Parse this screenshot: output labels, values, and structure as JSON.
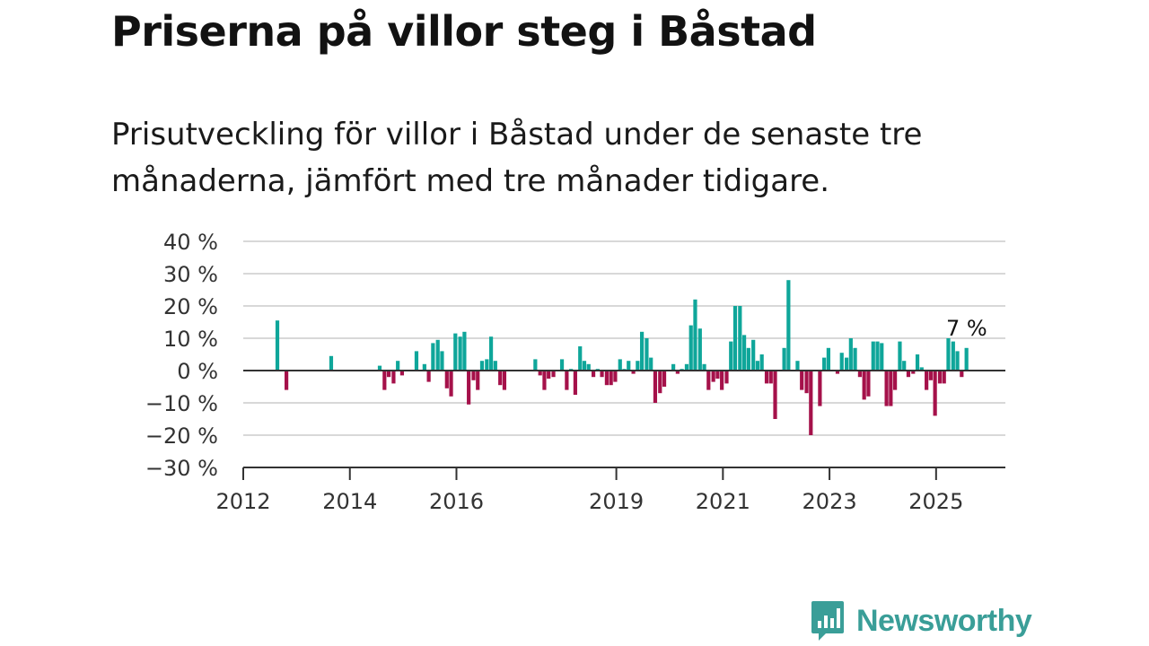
{
  "header": {
    "title": "Priserna på villor steg i Båstad",
    "subtitle": "Prisutveckling för villor i Båstad under de senaste tre månaderna, jämfört med tre månader tidigare."
  },
  "brand": {
    "name": "Newsworthy",
    "icon": "newsworthy-logo-icon"
  },
  "colors": {
    "positive": "#0fa69a",
    "negative": "#a5114a",
    "grid": "#d8d8d8",
    "axis": "#333333",
    "brand": "#3a9e98"
  },
  "chart_data": {
    "type": "bar",
    "title": "",
    "xlabel": "",
    "ylabel": "",
    "ylim": [
      -30,
      40
    ],
    "y_ticks": [
      40,
      30,
      20,
      10,
      0,
      -10,
      -20,
      -30
    ],
    "y_tick_labels": [
      "40 %",
      "30 %",
      "20 %",
      "10 %",
      "0 %",
      "−10 %",
      "−20 %",
      "−30 %"
    ],
    "x_ticks": [
      2012,
      2014,
      2016,
      2019,
      2021,
      2023,
      2025
    ],
    "x_tick_labels": [
      "2012",
      "2014",
      "2016",
      "2019",
      "2021",
      "2023",
      "2025"
    ],
    "xlim": [
      2012,
      2026.3
    ],
    "grid": true,
    "last_value_label": "7 %",
    "series": [
      {
        "values": [
          [
            2012.64,
            15.5
          ],
          [
            2012.81,
            -6
          ],
          [
            2013.65,
            4.5
          ],
          [
            2014.56,
            1.5
          ],
          [
            2014.65,
            -6
          ],
          [
            2014.73,
            -2
          ],
          [
            2014.82,
            -4
          ],
          [
            2014.9,
            3
          ],
          [
            2014.98,
            -1.5
          ],
          [
            2015.25,
            6
          ],
          [
            2015.4,
            2
          ],
          [
            2015.48,
            -3.5
          ],
          [
            2015.56,
            8.5
          ],
          [
            2015.65,
            9.5
          ],
          [
            2015.73,
            6
          ],
          [
            2015.82,
            -5.5
          ],
          [
            2015.9,
            -8
          ],
          [
            2015.98,
            11.5
          ],
          [
            2016.07,
            10.5
          ],
          [
            2016.15,
            12
          ],
          [
            2016.23,
            -10.5
          ],
          [
            2016.32,
            -3
          ],
          [
            2016.4,
            -6
          ],
          [
            2016.48,
            3
          ],
          [
            2016.57,
            3.5
          ],
          [
            2016.65,
            10.5
          ],
          [
            2016.73,
            3
          ],
          [
            2016.82,
            -4.5
          ],
          [
            2016.9,
            -6
          ],
          [
            2017.48,
            3.5
          ],
          [
            2017.57,
            -1.5
          ],
          [
            2017.65,
            -6
          ],
          [
            2017.73,
            -2.5
          ],
          [
            2017.82,
            -2
          ],
          [
            2017.9,
            0
          ],
          [
            2017.98,
            3.5
          ],
          [
            2018.07,
            -6
          ],
          [
            2018.15,
            0.5
          ],
          [
            2018.23,
            -7.5
          ],
          [
            2018.32,
            7.5
          ],
          [
            2018.4,
            3
          ],
          [
            2018.48,
            2
          ],
          [
            2018.57,
            -2
          ],
          [
            2018.65,
            0.5
          ],
          [
            2018.73,
            -2
          ],
          [
            2018.82,
            -4.5
          ],
          [
            2018.9,
            -4.5
          ],
          [
            2018.98,
            -3.5
          ],
          [
            2019.07,
            3.5
          ],
          [
            2019.15,
            0.5
          ],
          [
            2019.23,
            3
          ],
          [
            2019.32,
            -1
          ],
          [
            2019.4,
            3
          ],
          [
            2019.48,
            12
          ],
          [
            2019.57,
            10
          ],
          [
            2019.65,
            4
          ],
          [
            2019.73,
            -10
          ],
          [
            2019.82,
            -7
          ],
          [
            2019.9,
            -5
          ],
          [
            2020.07,
            2
          ],
          [
            2020.15,
            -1
          ],
          [
            2020.23,
            0.5
          ],
          [
            2020.32,
            2
          ],
          [
            2020.4,
            14
          ],
          [
            2020.48,
            22
          ],
          [
            2020.57,
            13
          ],
          [
            2020.65,
            2
          ],
          [
            2020.73,
            -6
          ],
          [
            2020.82,
            -3.5
          ],
          [
            2020.9,
            -2.5
          ],
          [
            2020.98,
            -6
          ],
          [
            2021.07,
            -4
          ],
          [
            2021.15,
            9
          ],
          [
            2021.23,
            20
          ],
          [
            2021.32,
            20
          ],
          [
            2021.4,
            11
          ],
          [
            2021.48,
            7
          ],
          [
            2021.57,
            9.5
          ],
          [
            2021.65,
            3
          ],
          [
            2021.73,
            5
          ],
          [
            2021.82,
            -4
          ],
          [
            2021.9,
            -4
          ],
          [
            2021.98,
            -15
          ],
          [
            2022.15,
            7
          ],
          [
            2022.23,
            28
          ],
          [
            2022.4,
            3
          ],
          [
            2022.48,
            -6
          ],
          [
            2022.57,
            -7
          ],
          [
            2022.65,
            -20
          ],
          [
            2022.82,
            -11
          ],
          [
            2022.9,
            4
          ],
          [
            2022.98,
            7
          ],
          [
            2023.15,
            -1
          ],
          [
            2023.23,
            5.5
          ],
          [
            2023.32,
            4
          ],
          [
            2023.4,
            10
          ],
          [
            2023.48,
            7
          ],
          [
            2023.57,
            -2
          ],
          [
            2023.65,
            -9
          ],
          [
            2023.73,
            -8
          ],
          [
            2023.82,
            9
          ],
          [
            2023.9,
            9
          ],
          [
            2023.98,
            8.5
          ],
          [
            2024.07,
            -11
          ],
          [
            2024.15,
            -11
          ],
          [
            2024.23,
            -6
          ],
          [
            2024.32,
            9
          ],
          [
            2024.4,
            3
          ],
          [
            2024.48,
            -2
          ],
          [
            2024.57,
            -1
          ],
          [
            2024.65,
            5
          ],
          [
            2024.73,
            1
          ],
          [
            2024.82,
            -6
          ],
          [
            2024.9,
            -3
          ],
          [
            2024.98,
            -14
          ],
          [
            2025.07,
            -4
          ],
          [
            2025.15,
            -4
          ],
          [
            2025.23,
            10
          ],
          [
            2025.32,
            9
          ],
          [
            2025.4,
            6
          ],
          [
            2025.48,
            -2
          ],
          [
            2025.57,
            7
          ]
        ]
      }
    ]
  }
}
